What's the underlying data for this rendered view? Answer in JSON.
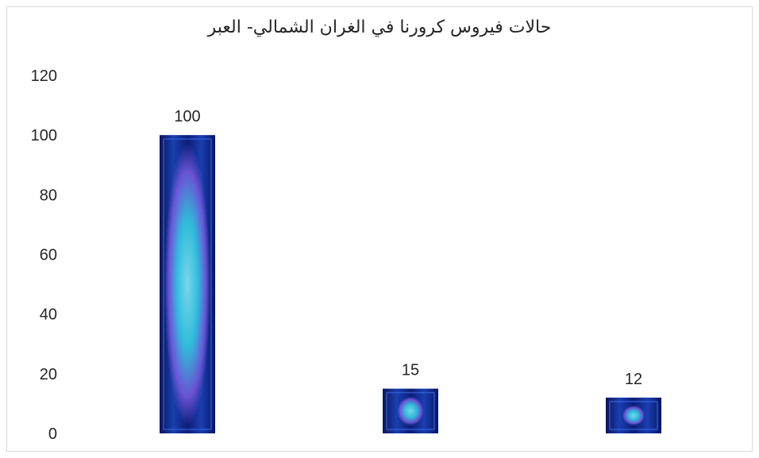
{
  "chart_data": {
    "type": "bar",
    "title": "حالات فيروس كرورنا في الغران الشمالي- العبر",
    "categories": [
      "",
      "",
      ""
    ],
    "values": [
      100,
      15,
      12
    ],
    "data_labels": [
      "100",
      "15",
      "12"
    ],
    "ylim": [
      0,
      120
    ],
    "yticks": [
      "0",
      "20",
      "40",
      "60",
      "80",
      "100",
      "120"
    ],
    "grid": false,
    "legend": "none",
    "bar_fill": "virus-image",
    "colors": {
      "bar_dark": "#0a1560",
      "bar_mid": "#1a3fb0",
      "bar_glow": "#35d6e8",
      "bar_accent": "#c86bf0",
      "text": "#262626",
      "frame": "#d9d9d9"
    }
  }
}
